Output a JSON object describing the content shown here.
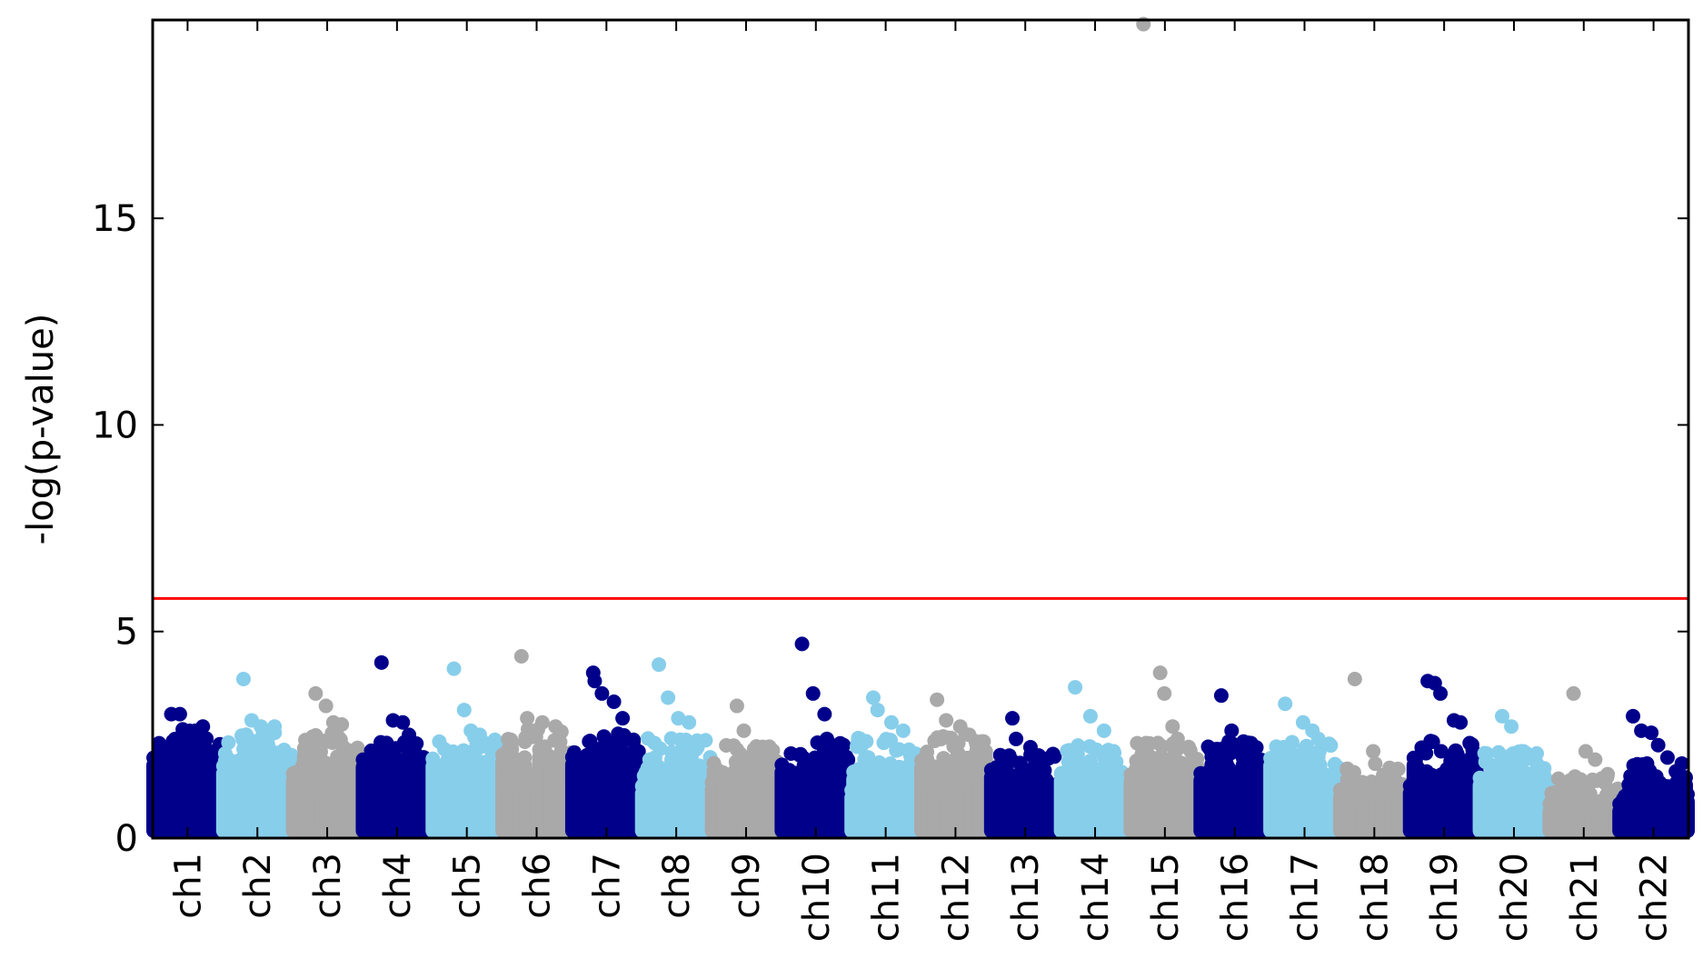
{
  "chart_data": {
    "type": "scatter",
    "title": "",
    "xlabel": "",
    "ylabel": "-log(p-value)",
    "ylim": [
      0,
      19.8
    ],
    "yticks": [
      {
        "value": 0,
        "label": "0"
      },
      {
        "value": 5,
        "label": "5"
      },
      {
        "value": 10,
        "label": "10"
      },
      {
        "value": 15,
        "label": "15"
      }
    ],
    "threshold": {
      "value": 5.8,
      "color": "#ff0000"
    },
    "grid": false,
    "legend": "none",
    "colors": [
      "#00008b",
      "#87ceeb",
      "#a9a9a9"
    ],
    "chromosomes": [
      {
        "label": "ch1",
        "color": "#00008b",
        "base_max": 2.3,
        "peaks": [
          3.0,
          3.0,
          2.6,
          2.7
        ]
      },
      {
        "label": "ch2",
        "color": "#87ceeb",
        "base_max": 2.2,
        "peaks": [
          3.85,
          2.85,
          2.7,
          2.7
        ]
      },
      {
        "label": "ch3",
        "color": "#a9a9a9",
        "base_max": 2.2,
        "peaks": [
          3.5,
          3.2,
          2.8,
          2.75
        ]
      },
      {
        "label": "ch4",
        "color": "#00008b",
        "base_max": 2.0,
        "peaks": [
          4.25,
          2.85,
          2.8,
          2.5
        ]
      },
      {
        "label": "ch5",
        "color": "#87ceeb",
        "base_max": 2.1,
        "peaks": [
          4.1,
          3.1,
          2.6,
          2.5
        ]
      },
      {
        "label": "ch6",
        "color": "#a9a9a9",
        "base_max": 2.3,
        "peaks": [
          4.4,
          2.9,
          2.8,
          2.7
        ]
      },
      {
        "label": "ch7",
        "color": "#00008b",
        "base_max": 2.2,
        "peaks": [
          4.0,
          3.8,
          3.5,
          3.3,
          2.9
        ]
      },
      {
        "label": "ch8",
        "color": "#87ceeb",
        "base_max": 2.1,
        "peaks": [
          4.2,
          3.4,
          2.9,
          2.8
        ]
      },
      {
        "label": "ch9",
        "color": "#a9a9a9",
        "base_max": 1.9,
        "peaks": [
          3.2,
          2.6,
          2.2
        ]
      },
      {
        "label": "ch10",
        "color": "#00008b",
        "base_max": 2.0,
        "peaks": [
          4.7,
          3.5,
          3.0,
          2.4
        ]
      },
      {
        "label": "ch11",
        "color": "#87ceeb",
        "base_max": 2.1,
        "peaks": [
          3.4,
          3.1,
          2.8,
          2.6
        ]
      },
      {
        "label": "ch12",
        "color": "#a9a9a9",
        "base_max": 2.2,
        "peaks": [
          3.35,
          2.85,
          2.7,
          2.5
        ]
      },
      {
        "label": "ch13",
        "color": "#00008b",
        "base_max": 1.7,
        "peaks": [
          2.9,
          2.4,
          2.2,
          2.0
        ]
      },
      {
        "label": "ch14",
        "color": "#87ceeb",
        "base_max": 1.9,
        "peaks": [
          3.65,
          2.95,
          2.6,
          2.1
        ]
      },
      {
        "label": "ch15",
        "color": "#a9a9a9",
        "base_max": 2.0,
        "peaks": [
          19.7,
          4.0,
          3.5,
          2.7,
          2.4
        ]
      },
      {
        "label": "ch16",
        "color": "#00008b",
        "base_max": 2.0,
        "peaks": [
          3.45,
          2.6,
          2.3
        ]
      },
      {
        "label": "ch17",
        "color": "#87ceeb",
        "base_max": 2.0,
        "peaks": [
          3.25,
          2.8,
          2.6,
          2.4
        ]
      },
      {
        "label": "ch18",
        "color": "#a9a9a9",
        "base_max": 1.4,
        "peaks": [
          3.85,
          2.1,
          1.8,
          1.7
        ]
      },
      {
        "label": "ch19",
        "color": "#00008b",
        "base_max": 2.0,
        "peaks": [
          3.8,
          3.75,
          3.5,
          2.85,
          2.8
        ]
      },
      {
        "label": "ch20",
        "color": "#87ceeb",
        "base_max": 1.8,
        "peaks": [
          2.95,
          2.7,
          2.1,
          2.0
        ]
      },
      {
        "label": "ch21",
        "color": "#a9a9a9",
        "base_max": 1.2,
        "peaks": [
          3.5,
          2.1,
          1.9
        ]
      },
      {
        "label": "ch22",
        "color": "#00008b",
        "base_max": 1.5,
        "peaks": [
          2.95,
          2.6,
          2.55,
          2.25,
          1.95
        ]
      }
    ]
  }
}
